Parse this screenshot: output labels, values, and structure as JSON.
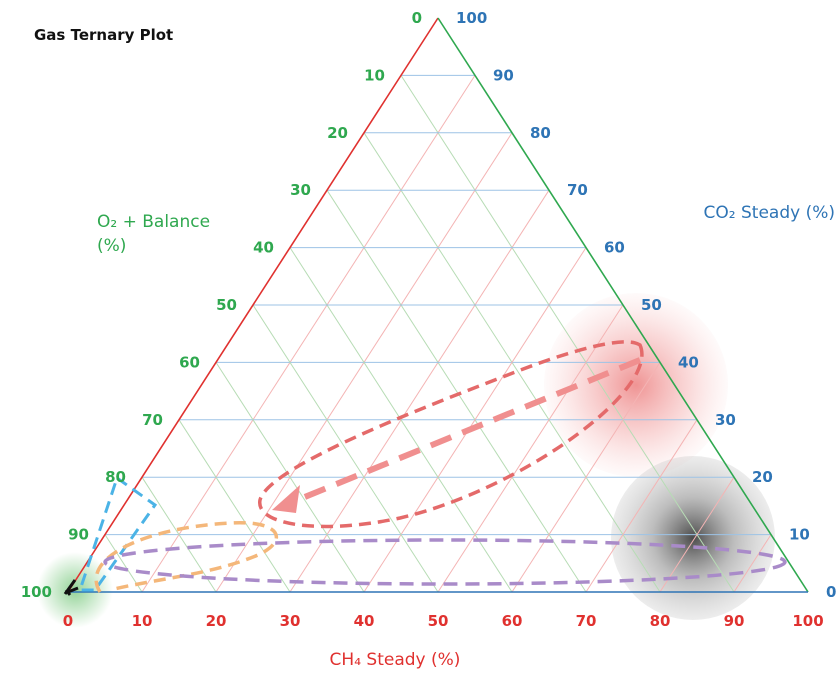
{
  "chart_data": {
    "type": "ternary",
    "title": "Gas Ternary Plot",
    "axes": {
      "bottom": {
        "label": "CH₄ Steady (%)",
        "ticks": [
          "0",
          "10",
          "20",
          "30",
          "40",
          "50",
          "60",
          "70",
          "80",
          "90",
          "100"
        ],
        "color": "#e0312f"
      },
      "right": {
        "label": "CO₂ Steady (%)",
        "ticks": [
          "0",
          "10",
          "20",
          "30",
          "40",
          "50",
          "60",
          "70",
          "80",
          "90",
          "100"
        ],
        "color": "#2e74b5"
      },
      "left": {
        "label_line1": "O₂ + Balance",
        "label_line2": "(%)",
        "ticks": [
          "0",
          "10",
          "20",
          "30",
          "40",
          "50",
          "60",
          "70",
          "80",
          "90",
          "100"
        ],
        "color": "#2fa84f"
      }
    },
    "grid": true,
    "regions": [
      {
        "name": "air",
        "color": "#2fa84f",
        "ch4": 0,
        "co2": 0,
        "o2": 100
      },
      {
        "name": "co2-rich",
        "color": "#e06060",
        "ch4": 70,
        "co2": 38,
        "o2": -8
      },
      {
        "name": "ch4-rich",
        "color": "#444444",
        "ch4": 85,
        "co2": 6,
        "o2": 9
      }
    ],
    "outlines": [
      {
        "name": "blue-triangle",
        "color": "#4bb3e6"
      },
      {
        "name": "orange-loop",
        "color": "#f4b77a"
      },
      {
        "name": "purple-ellipse",
        "color": "#a98bc9"
      },
      {
        "name": "red-loop",
        "color": "#e46a6a"
      }
    ],
    "arrow": {
      "from": {
        "ch4": 75,
        "co2": 38
      },
      "to": {
        "ch4": 25,
        "co2": 12
      },
      "color": "#f08f8f"
    }
  }
}
